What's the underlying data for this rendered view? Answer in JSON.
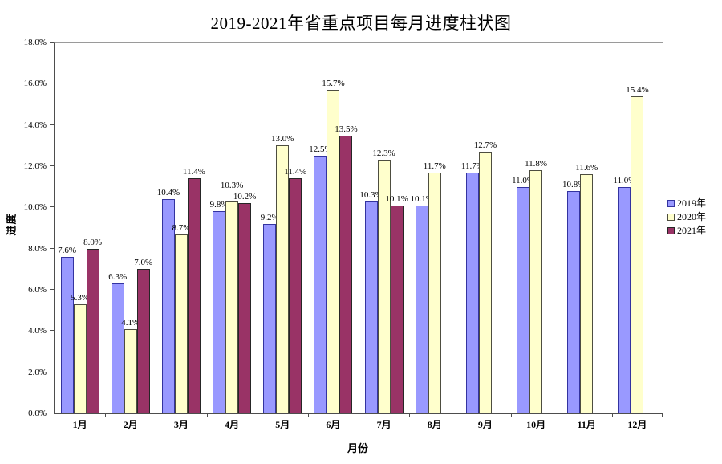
{
  "chart_data": {
    "type": "bar",
    "title": "2019-2021年省重点项目每月进度柱状图",
    "xlabel": "月份",
    "ylabel": "进度",
    "categories": [
      "1月",
      "2月",
      "3月",
      "4月",
      "5月",
      "6月",
      "7月",
      "8月",
      "9月",
      "10月",
      "11月",
      "12月"
    ],
    "series": [
      {
        "name": "2019年",
        "color": "#9999FF",
        "border_color": "#3333A0",
        "values": [
          7.6,
          6.3,
          10.4,
          9.8,
          9.2,
          12.5,
          10.3,
          10.1,
          11.7,
          11.0,
          10.8,
          11.0
        ]
      },
      {
        "name": "2020年",
        "color": "#FFFFCC",
        "border_color": "#4D4D40",
        "values": [
          5.3,
          4.1,
          8.7,
          10.3,
          13.0,
          15.7,
          12.3,
          11.7,
          12.7,
          11.8,
          11.6,
          15.4
        ]
      },
      {
        "name": "2021年",
        "color": "#993366",
        "border_color": "#262626",
        "values": [
          8.0,
          7.0,
          11.4,
          10.2,
          11.4,
          13.5,
          10.1,
          null,
          null,
          null,
          null,
          null
        ]
      }
    ],
    "ylim": [
      0,
      18
    ],
    "ytick_step": 2,
    "ytick_labels": [
      "0.0%",
      "2.0%",
      "4.0%",
      "6.0%",
      "8.0%",
      "10.0%",
      "12.0%",
      "14.0%",
      "16.0%",
      "18.0%"
    ],
    "data_label_suffix": "%",
    "grid": false,
    "legend_position": "right",
    "plot_background": "#FFFFFF",
    "plot_border_color": "#9A9A9A"
  }
}
